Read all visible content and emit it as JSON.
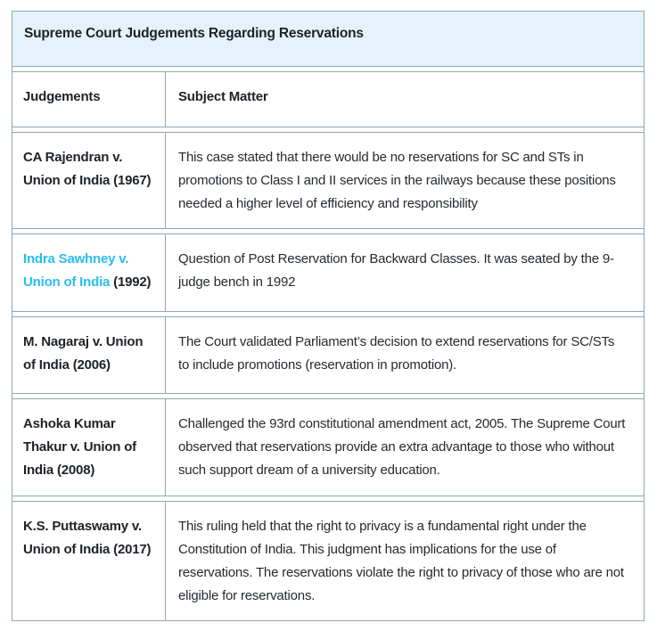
{
  "table": {
    "title": "Supreme Court Judgements Regarding Reservations",
    "columns": {
      "judgements": "Judgements",
      "subject_matter": "Subject Matter"
    },
    "rows": [
      {
        "case": "CA Rajendran v. Union of India (1967)",
        "subject": "This case stated that there would be no reservations for SC and STs in promotions to Class I and II services in the railways because these positions needed a higher level of efficiency and responsibility"
      },
      {
        "case_link": "Indra Sawhney v. Union of India",
        "case_rest": " (1992)",
        "subject": "Question of Post Reservation for Backward Classes. It was seated by the 9-judge bench in 1992"
      },
      {
        "case": "M. Nagaraj v. Union of India (2006)",
        "subject": "The Court validated Parliament’s decision to extend reservations for SC/STs to include promotions (reservation in promotion)."
      },
      {
        "case": "Ashoka Kumar Thakur v. Union of India (2008)",
        "subject": "Challenged the 93rd constitutional amendment act, 2005. The Supreme Court observed that reservations provide an extra advantage to those who without such support dream of a university education."
      },
      {
        "case": "K.S. Puttaswamy v. Union of India (2017)",
        "subject": "This ruling held that the right to privacy is a fundamental right under the Constitution of India. This judgment has implications for the use of reservations. The reservations violate the right to privacy of those who are not eligible for reservations."
      }
    ],
    "colors": {
      "header_bg": "#e4f3fb",
      "border": "#8ea8b6",
      "link": "#29bdef",
      "text": "#222222"
    }
  }
}
